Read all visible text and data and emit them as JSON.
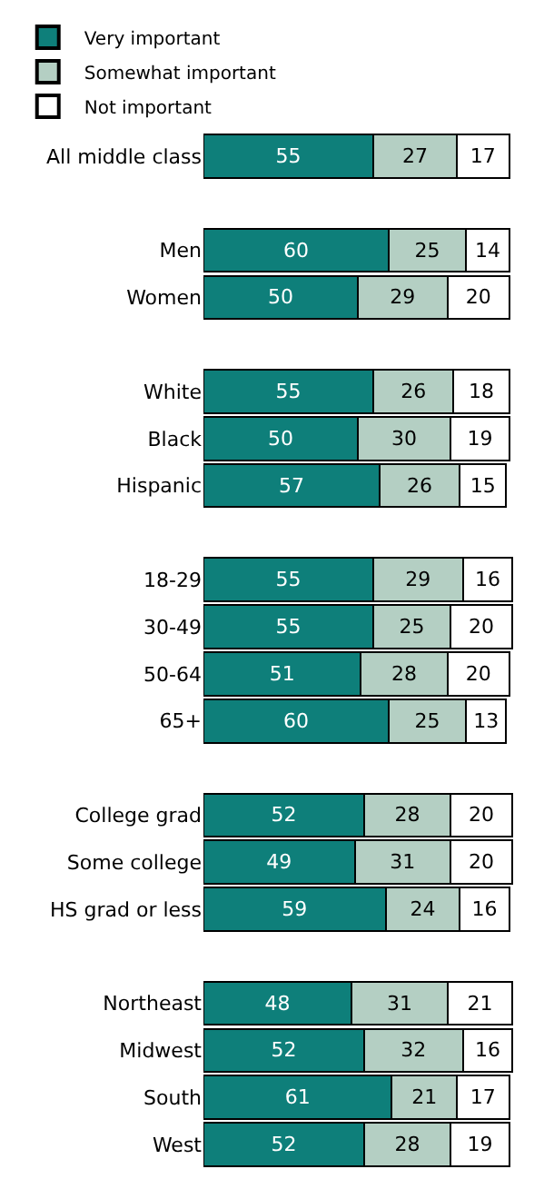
{
  "chart_data": {
    "type": "bar",
    "orientation": "horizontal",
    "stacked": true,
    "data_labels": true,
    "legend": "top left",
    "tick_labels": "y",
    "grid": false,
    "categories": [
      "All middle class",
      null,
      "Men",
      "Women",
      null,
      "White",
      "Black",
      "Hispanic",
      null,
      "18-29",
      "30-49",
      "50-64",
      "65+",
      null,
      "College grad",
      "Some college",
      "HS grad or less",
      null,
      "Northeast",
      "Midwest",
      "South",
      "West"
    ],
    "series": [
      {
        "name": "Very important",
        "color": "#0e7f7a",
        "values": [
          55,
          null,
          60,
          50,
          null,
          55,
          50,
          57,
          null,
          55,
          55,
          51,
          60,
          null,
          52,
          49,
          59,
          null,
          48,
          52,
          61,
          52
        ]
      },
      {
        "name": "Somewhat important",
        "color": "#b4cfc3",
        "values": [
          27,
          null,
          25,
          29,
          null,
          26,
          30,
          26,
          null,
          29,
          25,
          28,
          25,
          null,
          28,
          31,
          24,
          null,
          31,
          32,
          21,
          28
        ]
      },
      {
        "name": "Not important",
        "color": "#ffffff",
        "values": [
          17,
          null,
          14,
          20,
          null,
          18,
          19,
          15,
          null,
          16,
          20,
          20,
          13,
          null,
          20,
          20,
          16,
          null,
          21,
          16,
          17,
          19
        ]
      }
    ]
  }
}
